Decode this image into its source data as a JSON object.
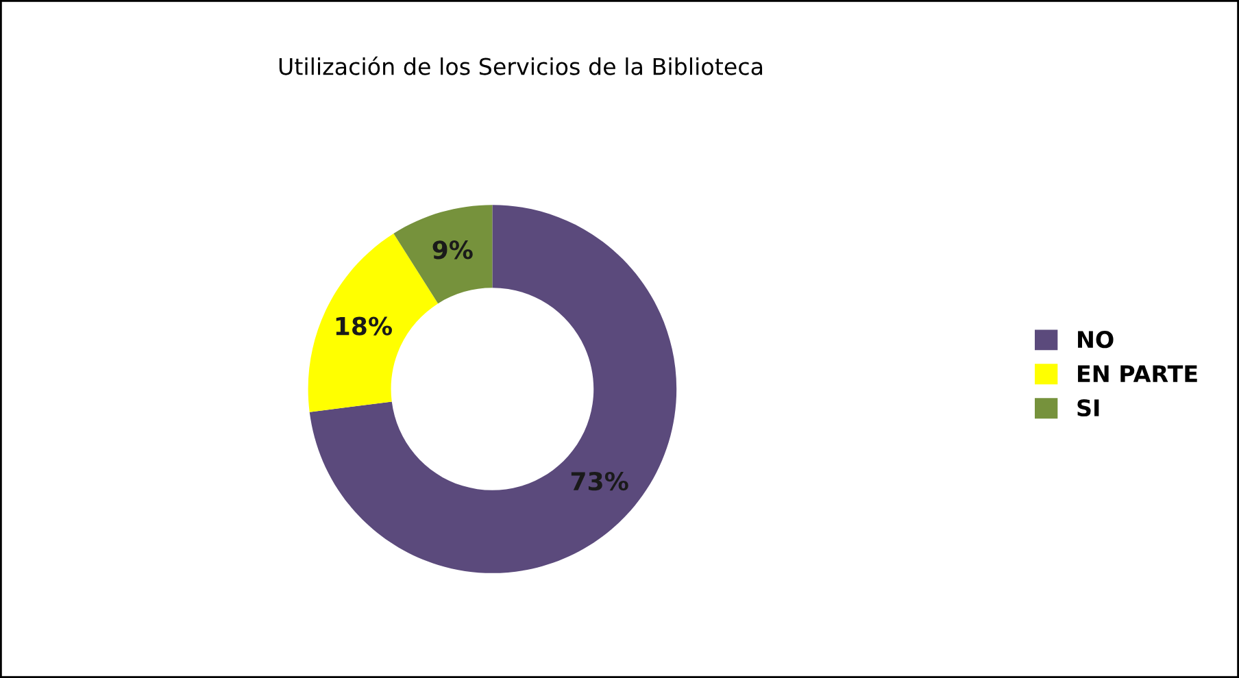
{
  "chart_data": {
    "type": "donut",
    "title": "Utilización de los Servicios de la Biblioteca",
    "categories": [
      "NO",
      "EN PARTE",
      "SI"
    ],
    "values": [
      73,
      18,
      9
    ],
    "colors": [
      "#5b4a7c",
      "#ffff00",
      "#76923c"
    ],
    "value_labels": [
      "73%",
      "18%",
      "9%"
    ],
    "legend": "right"
  }
}
